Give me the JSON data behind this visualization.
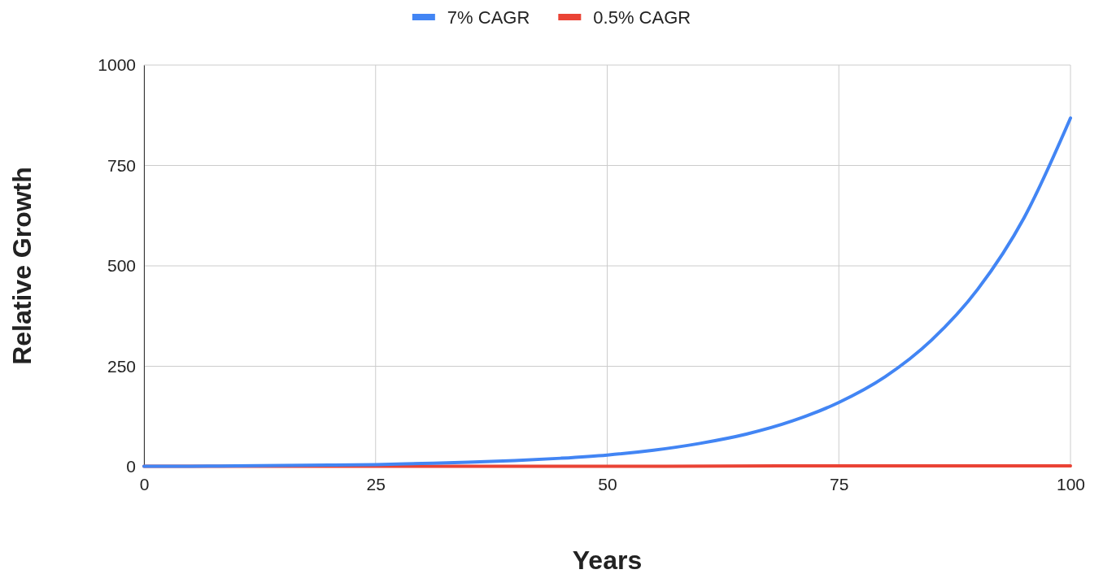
{
  "chart_data": {
    "type": "line",
    "xlabel": "Years",
    "ylabel": "Relative Growth",
    "xlim": [
      0,
      100
    ],
    "xticks": [
      0,
      25,
      50,
      75,
      100
    ],
    "ylim": [
      0,
      1000
    ],
    "yticks": [
      0,
      250,
      500,
      750,
      1000
    ],
    "grid": true,
    "legend": "top",
    "marker": "none",
    "line_style": "solid",
    "series": [
      {
        "name": "7% CAGR",
        "color": "#4285f4",
        "x": [
          0,
          5,
          10,
          15,
          20,
          25,
          30,
          35,
          40,
          45,
          50,
          55,
          60,
          65,
          70,
          75,
          80,
          85,
          90,
          95,
          100
        ],
        "values": [
          1,
          1,
          2,
          3,
          4,
          5,
          8,
          11,
          15,
          21,
          29,
          41,
          58,
          81,
          114,
          160,
          224,
          315,
          442,
          620,
          868
        ]
      },
      {
        "name": "0.5% CAGR",
        "color": "#ea4335",
        "x": [
          0,
          25,
          50,
          75,
          100
        ],
        "values": [
          1,
          1,
          1,
          2,
          2
        ]
      }
    ]
  }
}
